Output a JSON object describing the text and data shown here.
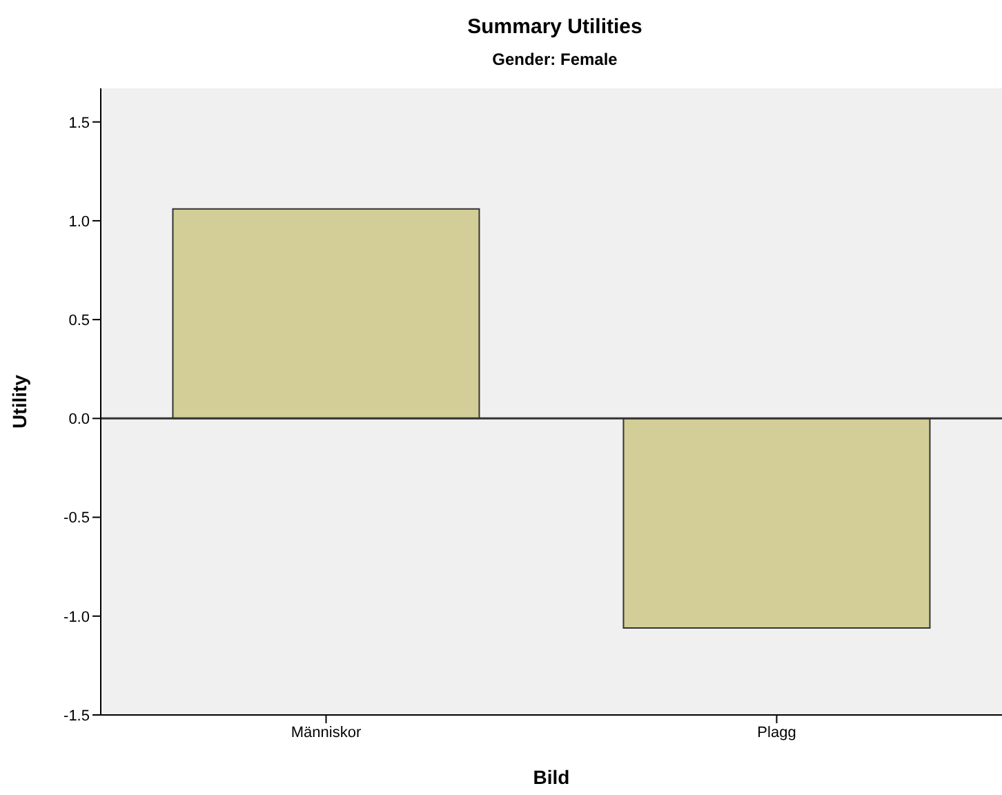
{
  "chart_data": {
    "type": "bar",
    "title": "Summary Utilities",
    "subtitle": "Gender: Female",
    "xlabel": "Bild",
    "ylabel": "Utility",
    "categories": [
      "Människor",
      "Plagg"
    ],
    "values": [
      1.06,
      -1.06
    ],
    "color": "#d3ce97",
    "ylim": [
      -1.5,
      1.67
    ],
    "yticks": [
      {
        "value": -1.5,
        "label": "-1.5"
      },
      {
        "value": -1.0,
        "label": "-1.0"
      },
      {
        "value": -0.5,
        "label": "-0.5"
      },
      {
        "value": 0,
        "label": "0.0"
      },
      {
        "value": 0.5,
        "label": "0.5"
      },
      {
        "value": 1.0,
        "label": "1.0"
      },
      {
        "value": 1.5,
        "label": "1.5"
      }
    ],
    "ref_lines": [
      {
        "axis": "y",
        "value": 0,
        "color": "#333333"
      }
    ],
    "grid": false,
    "legend": false
  }
}
